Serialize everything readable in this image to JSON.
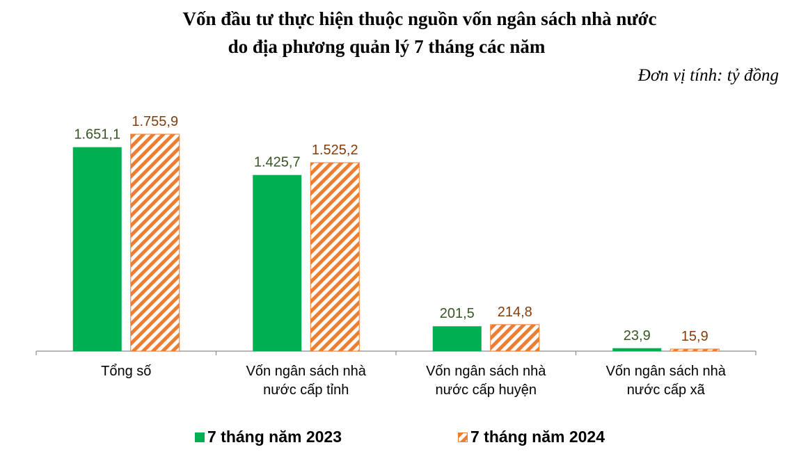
{
  "title_line1": "Vốn đầu tư thực hiện thuộc nguồn vốn ngân sách nhà nước",
  "title_line2": "do địa phương quản lý 7 tháng các năm",
  "unit": "Đơn vị tính: tỷ đồng",
  "colors": {
    "series1": "#00b050",
    "series2": "#ed7d31",
    "label1": "#375623",
    "label2": "#843c0c"
  },
  "chart_data": {
    "type": "bar",
    "title": "Vốn đầu tư thực hiện thuộc nguồn vốn ngân sách nhà nước do địa phương quản lý 7 tháng các năm",
    "categories": [
      [
        "Tổng số"
      ],
      [
        "Vốn ngân sách nhà",
        "nước cấp tỉnh"
      ],
      [
        "Vốn ngân sách nhà",
        "nước cấp huyện"
      ],
      [
        "Vốn ngân sách nhà",
        "nước cấp xã"
      ]
    ],
    "series": [
      {
        "name": "7 tháng năm 2023",
        "values": [
          1651.1,
          1425.7,
          201.5,
          23.9
        ],
        "labels": [
          "1.651,1",
          "1.425,7",
          "201,5",
          "23,9"
        ]
      },
      {
        "name": "7 tháng năm 2024",
        "values": [
          1755.9,
          1525.2,
          214.8,
          15.9
        ],
        "labels": [
          "1.755,9",
          "1.525,2",
          "214,8",
          "15,9"
        ]
      }
    ],
    "ylim": [
      0,
      1800
    ],
    "legend": "bottom",
    "grid": false
  }
}
